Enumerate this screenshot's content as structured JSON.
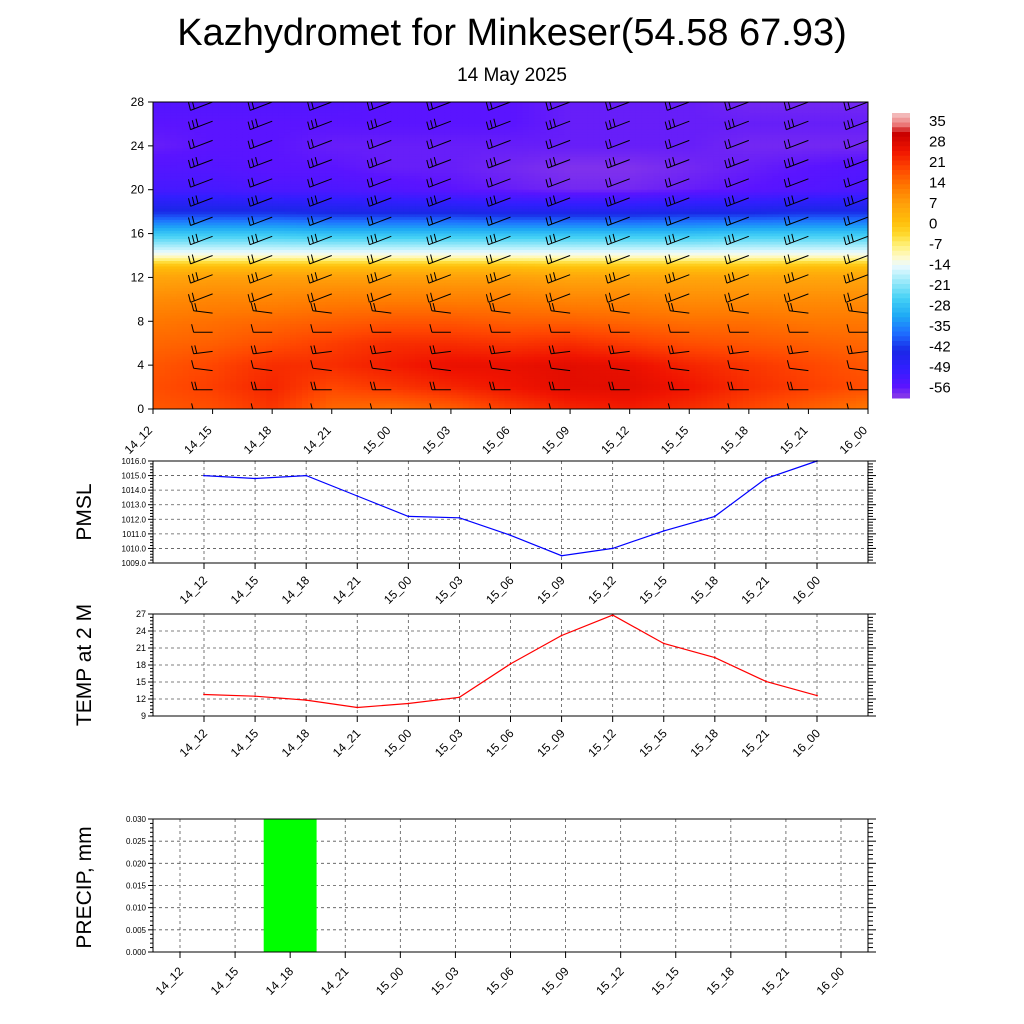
{
  "title": "Kazhydromet for Minkeser(54.58 67.93)",
  "subtitle": "14 May 2025",
  "chart_data": [
    {
      "type": "heatmap",
      "x_categories": [
        "14_12",
        "14_15",
        "14_18",
        "14_21",
        "15_00",
        "15_03",
        "15_06",
        "15_09",
        "15_12",
        "15_15",
        "15_18",
        "15_21",
        "16_00"
      ],
      "y_ticks": [
        0,
        4,
        8,
        12,
        16,
        20,
        24,
        28
      ],
      "ylim": [
        0,
        28
      ],
      "colorbar": {
        "labels": [
          "35",
          "28",
          "21",
          "14",
          "7",
          "0",
          "-7",
          "-14",
          "-21",
          "-28",
          "-35",
          "-42",
          "-49",
          "-56"
        ],
        "range": [
          -60,
          37
        ]
      },
      "levels": [
        0,
        2,
        4,
        6,
        8,
        10,
        12,
        13,
        14,
        16,
        18,
        20,
        22,
        24,
        26,
        28
      ],
      "rows": [
        [
          16,
          17,
          20,
          14,
          13,
          15,
          19,
          22,
          23,
          21,
          18,
          15,
          12
        ],
        [
          17,
          19,
          22,
          18,
          20,
          22,
          24,
          26,
          26,
          24,
          21,
          19,
          17
        ],
        [
          16,
          18,
          21,
          21,
          23,
          25,
          25,
          26,
          25,
          22,
          20,
          18,
          16
        ],
        [
          14,
          15,
          17,
          19,
          21,
          21,
          20,
          21,
          19,
          17,
          16,
          15,
          14
        ],
        [
          12,
          13,
          14,
          15,
          16,
          16,
          15,
          15,
          14,
          13,
          13,
          12,
          12
        ],
        [
          9,
          10,
          10,
          11,
          11,
          11,
          11,
          10,
          10,
          9,
          9,
          9,
          9
        ],
        [
          5,
          6,
          6,
          6,
          6,
          6,
          6,
          5,
          5,
          5,
          5,
          5,
          5
        ],
        [
          0,
          0,
          0,
          0,
          0,
          0,
          0,
          -1,
          -1,
          -1,
          -1,
          0,
          0
        ],
        [
          -13,
          -13,
          -13,
          -13,
          -13,
          -13,
          -13,
          -13,
          -13,
          -13,
          -13,
          -13,
          -13
        ],
        [
          -28,
          -28,
          -28,
          -29,
          -29,
          -29,
          -29,
          -29,
          -29,
          -29,
          -28,
          -28,
          -28
        ],
        [
          -44,
          -44,
          -44,
          -45,
          -45,
          -45,
          -46,
          -46,
          -46,
          -45,
          -45,
          -44,
          -44
        ],
        [
          -53,
          -53,
          -54,
          -54,
          -55,
          -56,
          -57,
          -58,
          -58,
          -57,
          -56,
          -55,
          -54
        ],
        [
          -55,
          -55,
          -56,
          -56,
          -57,
          -57,
          -58,
          -59,
          -59,
          -58,
          -57,
          -56,
          -55
        ],
        [
          -57,
          -56,
          -56,
          -57,
          -57,
          -57,
          -57,
          -57,
          -57,
          -57,
          -58,
          -58,
          -58
        ],
        [
          -56,
          -56,
          -56,
          -56,
          -56,
          -56,
          -56,
          -57,
          -57,
          -57,
          -57,
          -57,
          -57
        ],
        [
          -55,
          -55,
          -55,
          -55,
          -56,
          -56,
          -56,
          -57,
          -57,
          -57,
          -58,
          -58,
          -58
        ]
      ]
    },
    {
      "type": "line",
      "ylabel": "PMSL",
      "x": [
        "14_12",
        "14_15",
        "14_18",
        "14_21",
        "15_00",
        "15_03",
        "15_06",
        "15_09",
        "15_12",
        "15_15",
        "15_18",
        "15_21",
        "16_00"
      ],
      "values": [
        1015.0,
        1014.8,
        1015.0,
        1013.6,
        1012.2,
        1012.1,
        1010.9,
        1009.5,
        1010.0,
        1011.2,
        1012.2,
        1014.8,
        1016.0
      ],
      "ylim": [
        1009.0,
        1016.0
      ],
      "y_ticks": [
        "1009.0",
        "1010.0",
        "1011.0",
        "1012.0",
        "1013.0",
        "1014.0",
        "1015.0",
        "1016.0"
      ],
      "color": "#0000ff"
    },
    {
      "type": "line",
      "ylabel": "TEMP at 2 M",
      "x": [
        "14_12",
        "14_15",
        "14_18",
        "14_21",
        "15_00",
        "15_03",
        "15_06",
        "15_09",
        "15_12",
        "15_15",
        "15_18",
        "15_21",
        "16_00"
      ],
      "values": [
        12.8,
        12.5,
        11.8,
        10.5,
        11.2,
        12.3,
        18.2,
        23.2,
        26.8,
        21.8,
        19.3,
        15.1,
        12.6
      ],
      "ylim": [
        9,
        27
      ],
      "y_ticks": [
        "9",
        "12",
        "15",
        "18",
        "21",
        "24",
        "27"
      ],
      "color": "#ff0000"
    },
    {
      "type": "bar",
      "ylabel": "PRECIP, mm",
      "categories": [
        "14_12",
        "14_15",
        "14_18",
        "14_21",
        "15_00",
        "15_03",
        "15_06",
        "15_09",
        "15_12",
        "15_15",
        "15_18",
        "15_21",
        "16_00"
      ],
      "values": [
        0,
        0,
        0.03,
        0,
        0,
        0,
        0,
        0,
        0,
        0,
        0,
        0,
        0
      ],
      "ylim": [
        0,
        0.03
      ],
      "y_ticks": [
        "0.000",
        "0.005",
        "0.010",
        "0.015",
        "0.020",
        "0.025",
        "0.030"
      ],
      "color": "#00ff00"
    }
  ]
}
